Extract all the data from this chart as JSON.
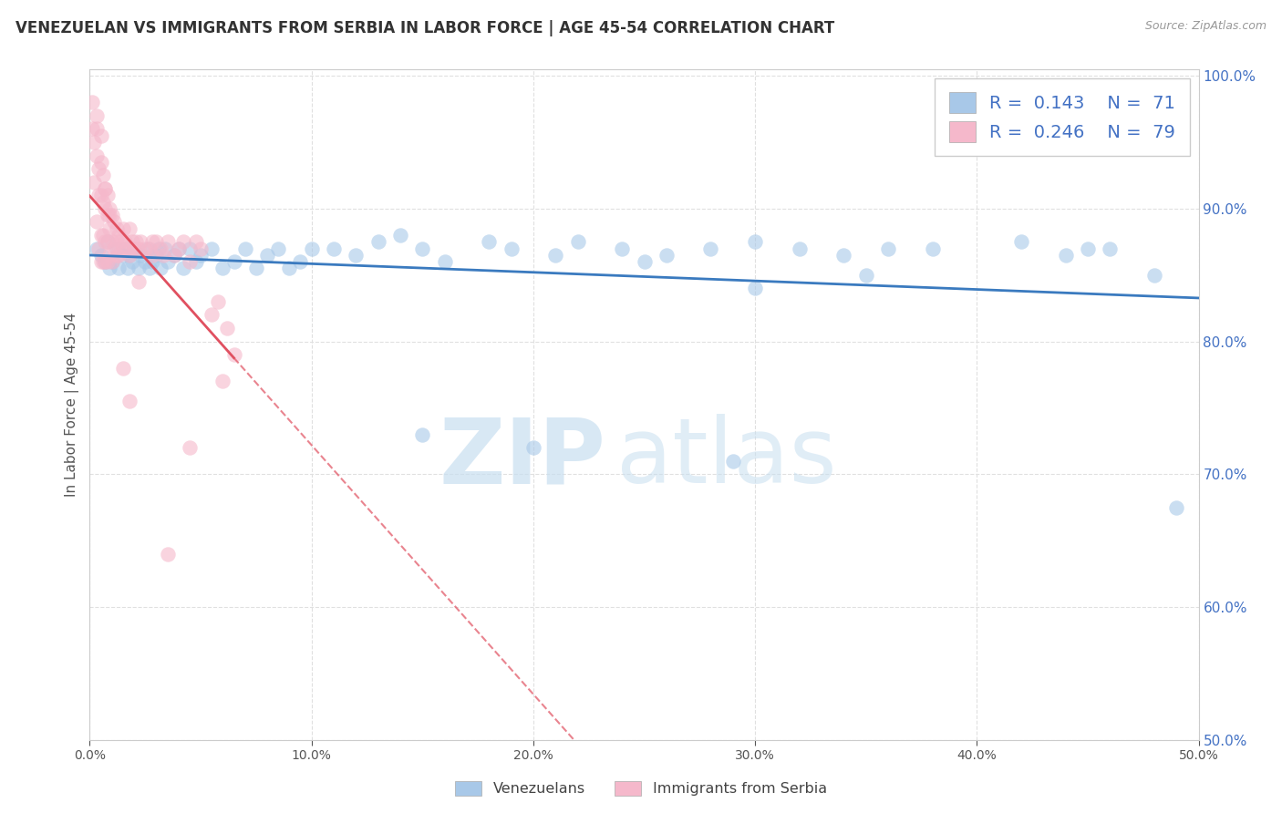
{
  "title": "VENEZUELAN VS IMMIGRANTS FROM SERBIA IN LABOR FORCE | AGE 45-54 CORRELATION CHART",
  "source": "Source: ZipAtlas.com",
  "ylabel": "In Labor Force | Age 45-54",
  "legend_labels": [
    "Venezuelans",
    "Immigrants from Serbia"
  ],
  "r_venezuelan": 0.143,
  "n_venezuelan": 71,
  "r_serbian": 0.246,
  "n_serbian": 79,
  "blue_scatter_color": "#a8c8e8",
  "pink_scatter_color": "#f5b8cb",
  "blue_line_color": "#3a7abf",
  "pink_line_color": "#e05060",
  "xlim": [
    0.0,
    0.5
  ],
  "ylim": [
    0.5,
    1.005
  ],
  "xticks": [
    0.0,
    0.1,
    0.2,
    0.3,
    0.4,
    0.5
  ],
  "yticks": [
    0.5,
    0.6,
    0.7,
    0.8,
    0.9,
    1.0
  ],
  "watermark_zip": "ZIP",
  "watermark_atlas": "atlas",
  "background_color": "#ffffff",
  "grid_color": "#e0e0e0",
  "ytick_color": "#4472c4",
  "xtick_color": "#555555",
  "title_color": "#333333",
  "source_color": "#999999",
  "legend_text_color": "#4472c4",
  "venezuelan_x": [
    0.003,
    0.005,
    0.007,
    0.008,
    0.009,
    0.01,
    0.012,
    0.013,
    0.015,
    0.016,
    0.017,
    0.018,
    0.019,
    0.02,
    0.022,
    0.023,
    0.025,
    0.026,
    0.027,
    0.028,
    0.03,
    0.031,
    0.032,
    0.034,
    0.035,
    0.038,
    0.04,
    0.042,
    0.045,
    0.048,
    0.05,
    0.055,
    0.06,
    0.065,
    0.07,
    0.075,
    0.08,
    0.085,
    0.09,
    0.095,
    0.1,
    0.11,
    0.12,
    0.13,
    0.14,
    0.15,
    0.16,
    0.18,
    0.19,
    0.21,
    0.22,
    0.24,
    0.26,
    0.28,
    0.3,
    0.32,
    0.34,
    0.36,
    0.38,
    0.42,
    0.44,
    0.46,
    0.48,
    0.3,
    0.35,
    0.25,
    0.2,
    0.15,
    0.45,
    0.49,
    0.29
  ],
  "venezuelan_y": [
    0.87,
    0.865,
    0.86,
    0.875,
    0.855,
    0.86,
    0.87,
    0.855,
    0.865,
    0.87,
    0.855,
    0.865,
    0.86,
    0.87,
    0.855,
    0.865,
    0.86,
    0.87,
    0.855,
    0.86,
    0.865,
    0.87,
    0.855,
    0.87,
    0.86,
    0.865,
    0.87,
    0.855,
    0.87,
    0.86,
    0.865,
    0.87,
    0.855,
    0.86,
    0.87,
    0.855,
    0.865,
    0.87,
    0.855,
    0.86,
    0.87,
    0.87,
    0.865,
    0.875,
    0.88,
    0.87,
    0.86,
    0.875,
    0.87,
    0.865,
    0.875,
    0.87,
    0.865,
    0.87,
    0.875,
    0.87,
    0.865,
    0.87,
    0.87,
    0.875,
    0.865,
    0.87,
    0.85,
    0.84,
    0.85,
    0.86,
    0.72,
    0.73,
    0.87,
    0.675,
    0.71
  ],
  "serbian_x": [
    0.001,
    0.001,
    0.002,
    0.002,
    0.003,
    0.003,
    0.003,
    0.004,
    0.004,
    0.004,
    0.005,
    0.005,
    0.005,
    0.005,
    0.006,
    0.006,
    0.006,
    0.006,
    0.007,
    0.007,
    0.007,
    0.007,
    0.008,
    0.008,
    0.008,
    0.008,
    0.009,
    0.009,
    0.009,
    0.01,
    0.01,
    0.01,
    0.011,
    0.011,
    0.012,
    0.012,
    0.013,
    0.013,
    0.014,
    0.015,
    0.015,
    0.016,
    0.017,
    0.018,
    0.018,
    0.019,
    0.02,
    0.021,
    0.022,
    0.023,
    0.025,
    0.027,
    0.028,
    0.03,
    0.032,
    0.033,
    0.035,
    0.038,
    0.04,
    0.042,
    0.045,
    0.048,
    0.05,
    0.055,
    0.058,
    0.06,
    0.062,
    0.065,
    0.003,
    0.005,
    0.007,
    0.009,
    0.012,
    0.015,
    0.018,
    0.022,
    0.028,
    0.035,
    0.045
  ],
  "serbian_y": [
    0.96,
    0.98,
    0.95,
    0.92,
    0.96,
    0.94,
    0.89,
    0.93,
    0.91,
    0.87,
    0.935,
    0.91,
    0.88,
    0.86,
    0.925,
    0.905,
    0.88,
    0.86,
    0.915,
    0.9,
    0.875,
    0.86,
    0.91,
    0.895,
    0.875,
    0.86,
    0.9,
    0.885,
    0.865,
    0.895,
    0.875,
    0.86,
    0.89,
    0.87,
    0.885,
    0.865,
    0.88,
    0.865,
    0.875,
    0.885,
    0.87,
    0.875,
    0.87,
    0.885,
    0.865,
    0.875,
    0.87,
    0.875,
    0.87,
    0.875,
    0.87,
    0.87,
    0.865,
    0.875,
    0.87,
    0.865,
    0.875,
    0.865,
    0.87,
    0.875,
    0.86,
    0.875,
    0.87,
    0.82,
    0.83,
    0.77,
    0.81,
    0.79,
    0.97,
    0.955,
    0.915,
    0.895,
    0.875,
    0.78,
    0.755,
    0.845,
    0.875,
    0.64,
    0.72
  ]
}
